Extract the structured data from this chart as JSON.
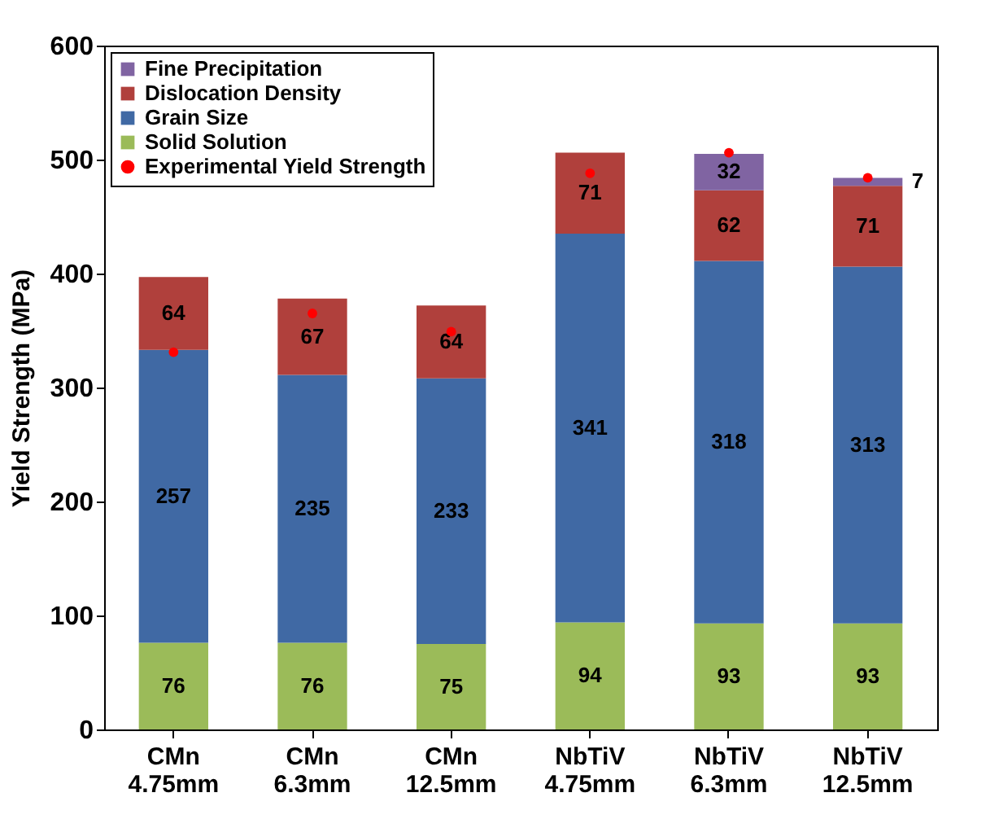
{
  "chart_data": {
    "type": "bar",
    "stacked": true,
    "ylabel": "Yield Strength (MPa)",
    "categories": [
      "CMn 4.75mm",
      "CMn 6.3mm",
      "CMn 12.5mm",
      "NbTiV 4.75mm",
      "NbTiV 6.3mm",
      "NbTiV 12.5mm"
    ],
    "series": [
      {
        "name": "Solid Solution",
        "color": "#9bbb59",
        "values": [
          76,
          76,
          75,
          94,
          93,
          93
        ],
        "value_labels": [
          "76",
          "76",
          "75",
          "94",
          "93",
          "93"
        ]
      },
      {
        "name": "Grain Size",
        "color": "#4069a4",
        "values": [
          257,
          235,
          233,
          341,
          318,
          313
        ],
        "value_labels": [
          "257",
          "235",
          "233",
          "341",
          "318",
          "313"
        ]
      },
      {
        "name": "Dislocation Density",
        "color": "#b0403c",
        "values": [
          64,
          67,
          64,
          71,
          62,
          71
        ],
        "value_labels": [
          "64",
          "67",
          "64",
          "71",
          "62",
          "71"
        ]
      },
      {
        "name": "Fine Precipitation",
        "color": "#8064a2",
        "values": [
          null,
          null,
          null,
          null,
          32,
          7
        ],
        "value_labels": [
          null,
          null,
          null,
          null,
          "32",
          "7"
        ]
      },
      {
        "name": "Experimental Yield Strength",
        "type": "scatter",
        "color": "#ff0000",
        "x": [
          "CMn 4.75mm",
          "CMn 6.3mm",
          "CMn 12.5mm",
          "NbTiV 4.75mm",
          "NbTiV 6.3mm",
          "NbTiV 12.5mm"
        ],
        "values": [
          331,
          365,
          349,
          488,
          506,
          484
        ]
      }
    ],
    "ylim": [
      0,
      600
    ],
    "yticks": [
      0,
      100,
      200,
      300,
      400,
      500,
      600
    ],
    "grid": false,
    "legend": "top left",
    "marker": "circle"
  }
}
